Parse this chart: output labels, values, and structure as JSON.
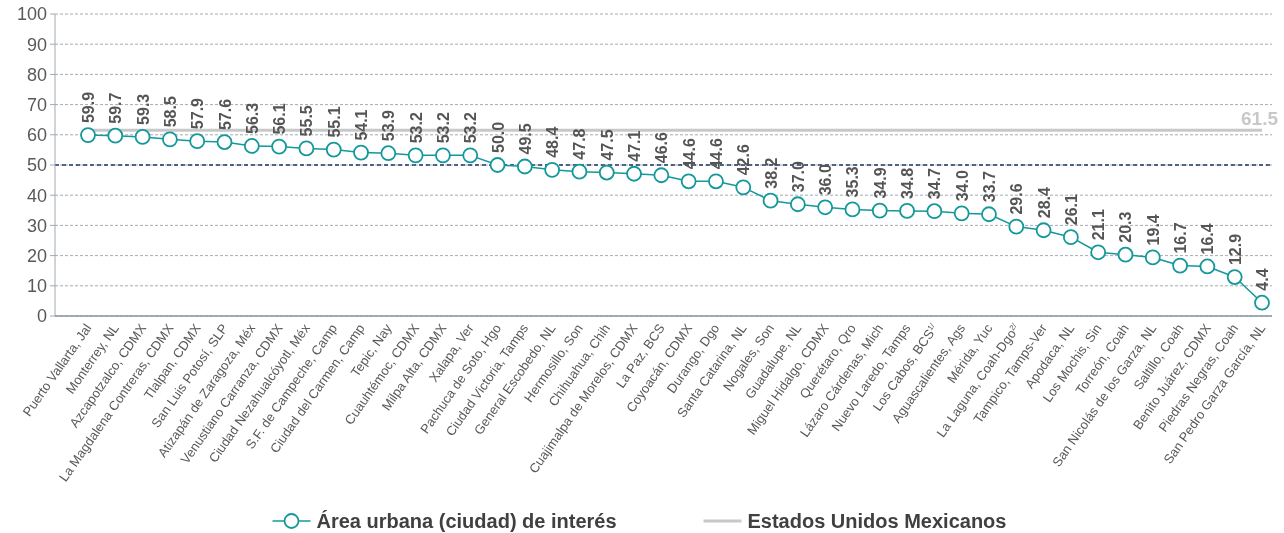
{
  "chart_data": {
    "type": "line",
    "categories": [
      "Puerto Vallarta, Jal",
      "Monterrey, NL",
      "Azcapotzalco, CDMX",
      "La Magdalena Contreras, CDMX",
      "Tlalpan, CDMX",
      "San Luis Potosí, SLP",
      "Atizapán de Zaragoza, Méx",
      "Venustiano Carranza, CDMX",
      "Ciudad Nezahualcóyotl, Méx",
      "S.F. de Campeche, Camp",
      "Ciudad del Carmen, Camp",
      "Tepic, Nay",
      "Cuauhtémoc, CDMX",
      "Milpa Alta, CDMX",
      "Xalapa, Ver",
      "Pachuca de Soto, Hgo",
      "Ciudad Victoria, Tamps",
      "General Escobedo, NL",
      "Hermosillo, Son",
      "Chihuahua, Chih",
      "Cuajimalpa de Morelos, CDMX",
      "La Paz, BCS",
      "Coyoacán, CDMX",
      "Durango, Dgo",
      "Santa Catarina, NL",
      "Nogales, Son",
      "Guadalupe, NL",
      "Miguel Hidalgo, CDMX",
      "Querétaro, Qro",
      "Lázaro Cárdenas, Mich",
      "Nuevo Laredo, Tamps",
      "Los Cabos, BCS$^{1/}$",
      "Aguascalientes, Ags",
      "Mérida, Yuc",
      "La Laguna, Coah-Dgo$^{2/}$",
      "Tampico, Tamps-Ver",
      "Apodaca, NL",
      "Los Mochis, Sin",
      "Torreón, Coah",
      "San Nicolás de los Garza, NL",
      "Saltillo, Coah",
      "Benito Juárez, CDMX",
      "Piedras Negras, Coah",
      "San Pedro Garza García, NL"
    ],
    "series": [
      {
        "name": "Área urbana (ciudad) de interés",
        "color": "#14989a",
        "marker": "circle",
        "values": [
          59.9,
          59.7,
          59.3,
          58.5,
          57.9,
          57.6,
          56.3,
          56.1,
          55.5,
          55.1,
          54.1,
          53.9,
          53.2,
          53.2,
          53.2,
          50.0,
          49.5,
          48.4,
          47.8,
          47.5,
          47.1,
          46.6,
          44.6,
          44.6,
          42.6,
          38.2,
          37.0,
          36.0,
          35.3,
          34.9,
          34.8,
          34.7,
          34.0,
          33.7,
          29.6,
          28.4,
          26.1,
          21.1,
          20.3,
          19.4,
          16.7,
          16.4,
          12.9,
          4.4
        ],
        "value_labels": [
          "59.9",
          "59.7",
          "59.3",
          "58.5",
          "57.9",
          "57.6",
          "56.3",
          "56.1",
          "55.5",
          "55.1",
          "54.1",
          "53.9",
          "53.2",
          "53.2",
          "53.2",
          "50.0",
          "49.5",
          "48.4",
          "47.8",
          "47.5",
          "47.1",
          "46.6",
          "44.6",
          "44.6",
          "42.6",
          "38.2",
          "37.0",
          "36.0",
          "35.3",
          "34.9",
          "34.8",
          "34.7",
          "34.0",
          "33.7",
          "29.6",
          "28.4",
          "26.1",
          "21.1",
          "20.3",
          "19.4",
          "16.7",
          "16.4",
          "12.9",
          "4.4"
        ]
      },
      {
        "name": "Estados Unidos Mexicanos",
        "color": "#c8c8c8",
        "marker": "none",
        "values": [
          61.5,
          61.5,
          61.5,
          61.5,
          61.5,
          61.5,
          61.5,
          61.5,
          61.5,
          61.5,
          61.5,
          61.5,
          61.5,
          61.5,
          61.5,
          61.5,
          61.5,
          61.5,
          61.5,
          61.5,
          61.5,
          61.5,
          61.5,
          61.5,
          61.5,
          61.5,
          61.5,
          61.5,
          61.5,
          61.5,
          61.5,
          61.5,
          61.5,
          61.5,
          61.5,
          61.5,
          61.5,
          61.5,
          61.5,
          61.5,
          61.5,
          61.5,
          61.5,
          61.5
        ],
        "value_labels": [
          null,
          null,
          null,
          null,
          null,
          null,
          null,
          null,
          null,
          null,
          null,
          null,
          null,
          null,
          null,
          null,
          null,
          null,
          null,
          null,
          null,
          null,
          null,
          null,
          null,
          null,
          null,
          null,
          null,
          null,
          null,
          null,
          null,
          null,
          null,
          null,
          null,
          null,
          null,
          null,
          null,
          null,
          null,
          "61.5"
        ]
      }
    ],
    "ylim": [
      0,
      100
    ],
    "yticks": [
      0,
      10,
      20,
      30,
      40,
      50,
      60,
      70,
      80,
      90,
      100
    ],
    "grid": "y",
    "legend": "bottom",
    "ref_lines": [
      {
        "axis": "y",
        "value": 50,
        "color": "#1f3864",
        "line_style": "dashed"
      }
    ]
  }
}
